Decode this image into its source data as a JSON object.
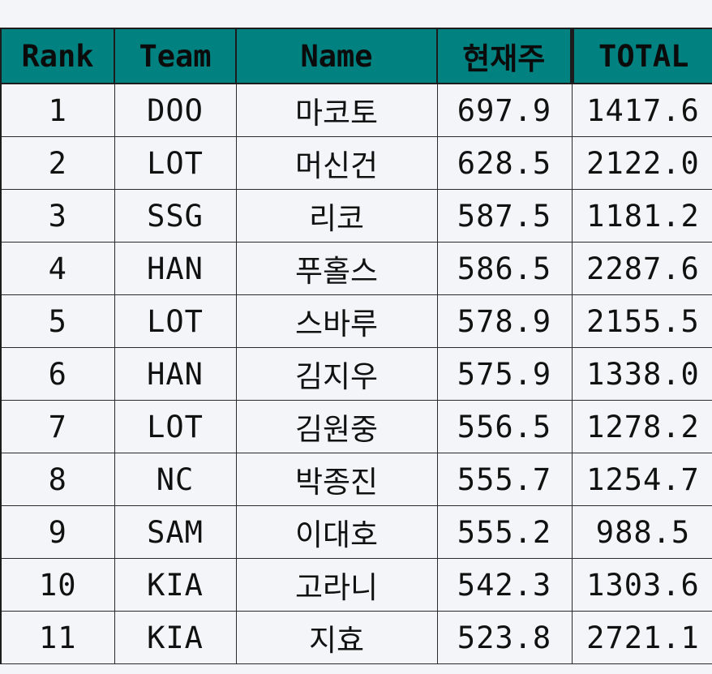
{
  "table": {
    "headers": {
      "rank": "Rank",
      "team": "Team",
      "name": "Name",
      "current_week": "현재주",
      "total": "TOTAL"
    },
    "rows": [
      {
        "rank": "1",
        "team": "DOO",
        "name": "마코토",
        "current_week": "697.9",
        "total": "1417.6"
      },
      {
        "rank": "2",
        "team": "LOT",
        "name": "머신건",
        "current_week": "628.5",
        "total": "2122.0"
      },
      {
        "rank": "3",
        "team": "SSG",
        "name": "리코",
        "current_week": "587.5",
        "total": "1181.2"
      },
      {
        "rank": "4",
        "team": "HAN",
        "name": "푸홀스",
        "current_week": "586.5",
        "total": "2287.6"
      },
      {
        "rank": "5",
        "team": "LOT",
        "name": "스바루",
        "current_week": "578.9",
        "total": "2155.5"
      },
      {
        "rank": "6",
        "team": "HAN",
        "name": "김지우",
        "current_week": "575.9",
        "total": "1338.0"
      },
      {
        "rank": "7",
        "team": "LOT",
        "name": "김원중",
        "current_week": "556.5",
        "total": "1278.2"
      },
      {
        "rank": "8",
        "team": "NC",
        "name": "박종진",
        "current_week": "555.7",
        "total": "1254.7"
      },
      {
        "rank": "9",
        "team": "SAM",
        "name": "이대호",
        "current_week": "555.2",
        "total": "988.5"
      },
      {
        "rank": "10",
        "team": "KIA",
        "name": "고라니",
        "current_week": "542.3",
        "total": "1303.6"
      },
      {
        "rank": "11",
        "team": "KIA",
        "name": "지효",
        "current_week": "523.8",
        "total": "2721.1"
      }
    ]
  },
  "colors": {
    "header_bg": "#018180",
    "page_bg": "#f4f5f9",
    "border": "#1c1c1c"
  }
}
